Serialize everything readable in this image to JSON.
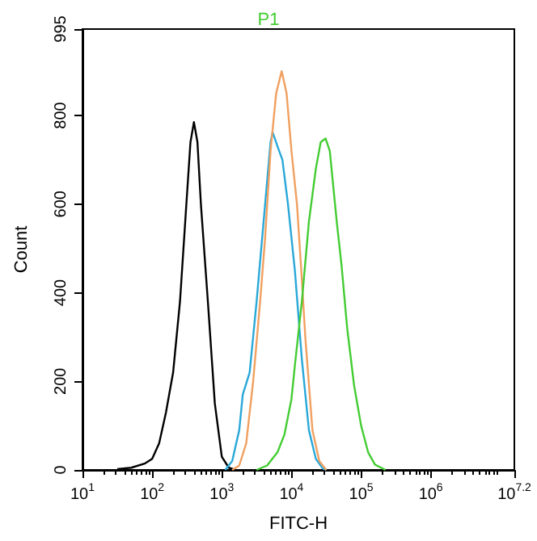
{
  "chart_data": {
    "type": "line",
    "title": "P1",
    "xlabel": "FITC-H",
    "ylabel": "Count",
    "log": "x",
    "grid": false,
    "marker": "none",
    "line_style": "solid",
    "xlim": [
      10,
      15848931.92
    ],
    "ylim": [
      0,
      995
    ],
    "xticks": [
      {
        "value": 10,
        "label": "10$^{1}$"
      },
      {
        "value": 100,
        "label": "10$^{2}$"
      },
      {
        "value": 1000,
        "label": "10$^{3}$"
      },
      {
        "value": 10000,
        "label": "10$^{4}$"
      },
      {
        "value": 100000,
        "label": "10$^{5}$"
      },
      {
        "value": 1000000,
        "label": "10$^{6}$"
      },
      {
        "value": 15848931.92,
        "label": "10$^{7.2}$"
      }
    ],
    "yticks": [
      0,
      200,
      400,
      600,
      800,
      995
    ],
    "series": [
      {
        "color": "#000000",
        "x": [
          31.6,
          50.1,
          79.4,
          100,
          126,
          158,
          200,
          251,
          316,
          355,
          398,
          447,
          501,
          631,
          794,
          1000,
          1260,
          1580
        ],
        "values": [
          2,
          5,
          15,
          25,
          60,
          130,
          220,
          380,
          620,
          740,
          785,
          740,
          600,
          380,
          150,
          30,
          5,
          0
        ]
      },
      {
        "color": "#2aa8d8",
        "x": [
          1120,
          1410,
          1780,
          2000,
          2510,
          3160,
          3980,
          5010,
          5370,
          6310,
          7410,
          8910,
          11200,
          14100,
          17800,
          22400,
          28200,
          31600
        ],
        "values": [
          0,
          20,
          90,
          170,
          220,
          380,
          560,
          740,
          762,
          730,
          700,
          600,
          450,
          250,
          90,
          25,
          3,
          0
        ]
      },
      {
        "color": "#f0a060",
        "x": [
          1410,
          1780,
          2240,
          2820,
          3550,
          4170,
          5010,
          6030,
          7240,
          8510,
          10000,
          12000,
          14100,
          15800,
          20000,
          25100,
          31600
        ],
        "values": [
          0,
          10,
          60,
          200,
          380,
          520,
          720,
          850,
          900,
          850,
          720,
          600,
          430,
          300,
          90,
          20,
          0
        ]
      },
      {
        "color": "#44cc33",
        "x": [
          3160,
          4470,
          6310,
          7940,
          10000,
          11200,
          14100,
          17800,
          22400,
          26300,
          30900,
          35500,
          44700,
          52500,
          63100,
          79400,
          100000,
          126000,
          158000,
          224000
        ],
        "values": [
          0,
          10,
          40,
          80,
          160,
          236,
          380,
          560,
          680,
          740,
          748,
          720,
          560,
          460,
          320,
          190,
          100,
          40,
          12,
          0
        ]
      }
    ]
  }
}
